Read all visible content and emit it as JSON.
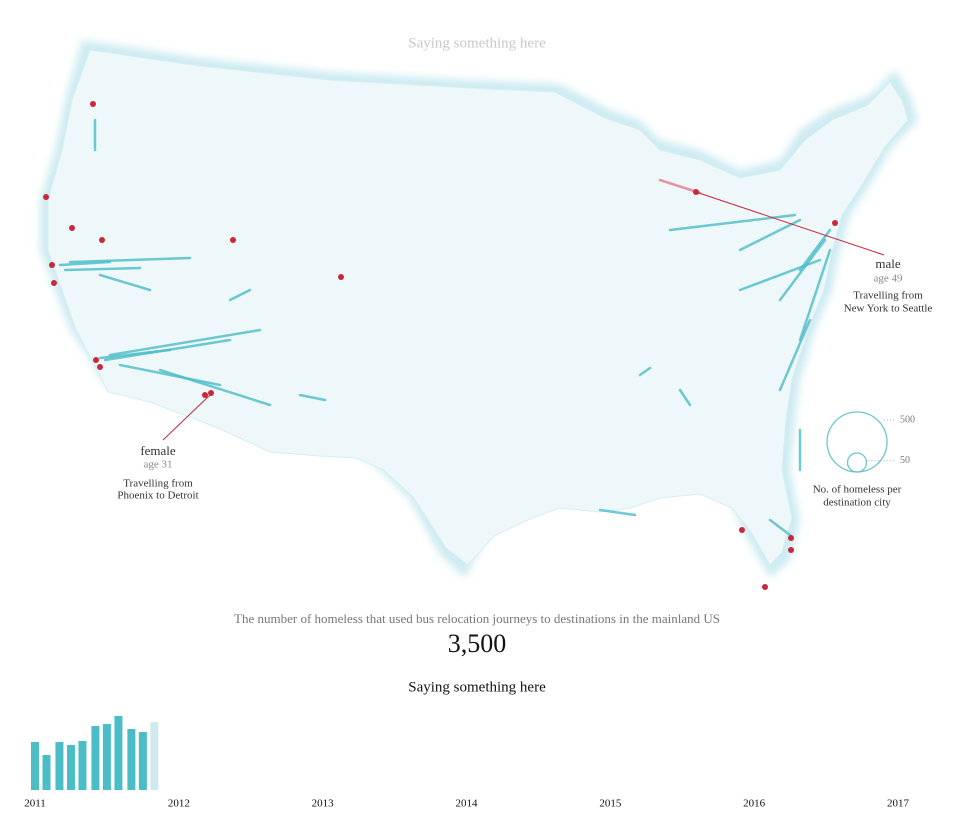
{
  "map": {
    "title": "Saying something here",
    "annotations": [
      {
        "label": "male",
        "age": "age 49",
        "lines": [
          "Travelling from",
          "New York to Seattle"
        ]
      },
      {
        "label": "female",
        "age": "age 31",
        "lines": [
          "Travelling from",
          "Phoenix to Detroit"
        ]
      }
    ],
    "legend": {
      "sizes": [
        500,
        50
      ],
      "lines": [
        "No. of homeless per",
        "destination city"
      ]
    }
  },
  "caption": "The number of homeless that used bus relocation journeys to destinations in the mainland US",
  "total": "3,500",
  "subtitle": "Saying something here",
  "chart_data": {
    "type": "bar",
    "x": [
      2011,
      2011.08,
      2011.17,
      2011.25,
      2011.33,
      2011.42,
      2011.5,
      2011.58,
      2011.67,
      2011.75,
      2011.83
    ],
    "values": [
      48,
      35,
      48,
      45,
      49,
      64,
      66,
      74,
      61,
      58,
      68
    ],
    "colors": [
      "#4bbdc7",
      "#4bbdc7",
      "#4bbdc7",
      "#4bbdc7",
      "#4bbdc7",
      "#4bbdc7",
      "#4bbdc7",
      "#4bbdc7",
      "#4bbdc7",
      "#4bbdc7",
      "#cfeaef"
    ],
    "xlim": [
      2011,
      2017
    ],
    "xticks": [
      2011,
      2012,
      2013,
      2014,
      2015,
      2016,
      2017
    ],
    "ylim": [
      0,
      80
    ]
  }
}
